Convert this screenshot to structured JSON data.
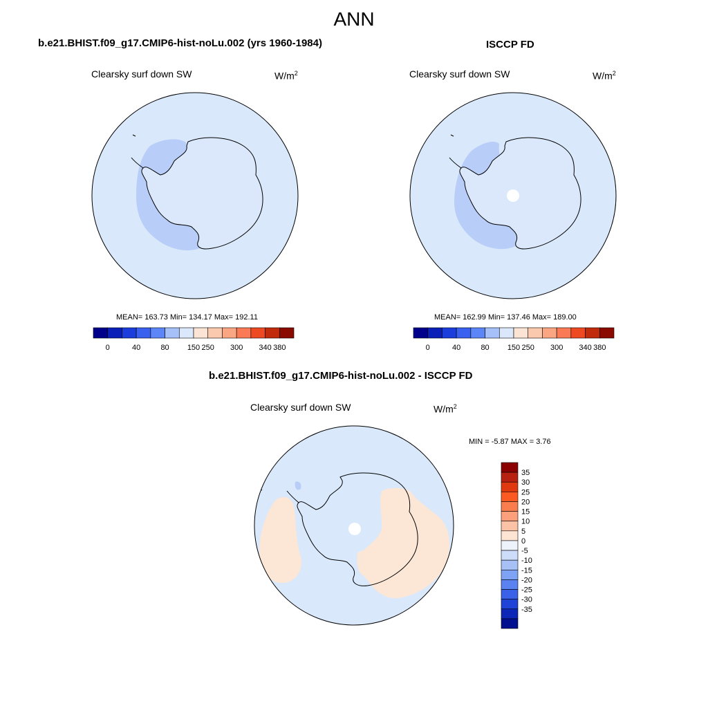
{
  "figure": {
    "season": "ANN",
    "panels": [
      {
        "title": "b.e21.BHIST.f09_g17.CMIP6-hist-noLu.002 (yrs 1960-1984)",
        "variable": "Clearsky surf down SW",
        "units": "W/m",
        "units_sup": "2",
        "stats": "MEAN= 163.73  Min= 134.17  Max= 192.11"
      },
      {
        "title": "ISCCP FD",
        "variable": "Clearsky surf down SW",
        "units": "W/m",
        "units_sup": "2",
        "stats": "MEAN= 162.99  Min= 137.46  Max= 189.00"
      },
      {
        "title": "b.e21.BHIST.f09_g17.CMIP6-hist-noLu.002 - ISCCP FD",
        "variable": "Clearsky surf down SW",
        "units": "W/m",
        "units_sup": "2",
        "stats": "MIN =  -5.87 MAX =   3.76"
      }
    ]
  },
  "colorbar_main": {
    "colors": [
      "#00008b",
      "#0a1fb8",
      "#1a3ddb",
      "#3a60f0",
      "#5c85f8",
      "#a6c0fa",
      "#dbe8fb",
      "#fbe4d4",
      "#fbc9ad",
      "#fba682",
      "#fa7a55",
      "#ee4a22",
      "#c22a0c",
      "#8b0a00"
    ],
    "labels": [
      "0",
      "40",
      "80",
      "150",
      "250",
      "300",
      "340",
      "380"
    ]
  },
  "colorbar_diff": {
    "colors": [
      "#8b0000",
      "#b82010",
      "#e0390f",
      "#fb5a22",
      "#fa7d4d",
      "#fba07a",
      "#fbc2a5",
      "#fde4d3",
      "#eef2fb",
      "#cdddf9",
      "#a7c1f7",
      "#7ea3f4",
      "#5a82f0",
      "#3a62e8",
      "#1f43d6",
      "#0c27b8",
      "#00108f"
    ],
    "labels": [
      "35",
      "30",
      "25",
      "20",
      "15",
      "10",
      "5",
      "0",
      "-5",
      "-10",
      "-15",
      "-20",
      "-25",
      "-30",
      "-35"
    ]
  },
  "colors": {
    "map_background": "#d9e9fb",
    "field_low": "#b8cdf8",
    "field_positive": "#fce6d6",
    "field_negative": "#b8cdf8",
    "missing": "#ffffff",
    "coastline": "#000000"
  }
}
